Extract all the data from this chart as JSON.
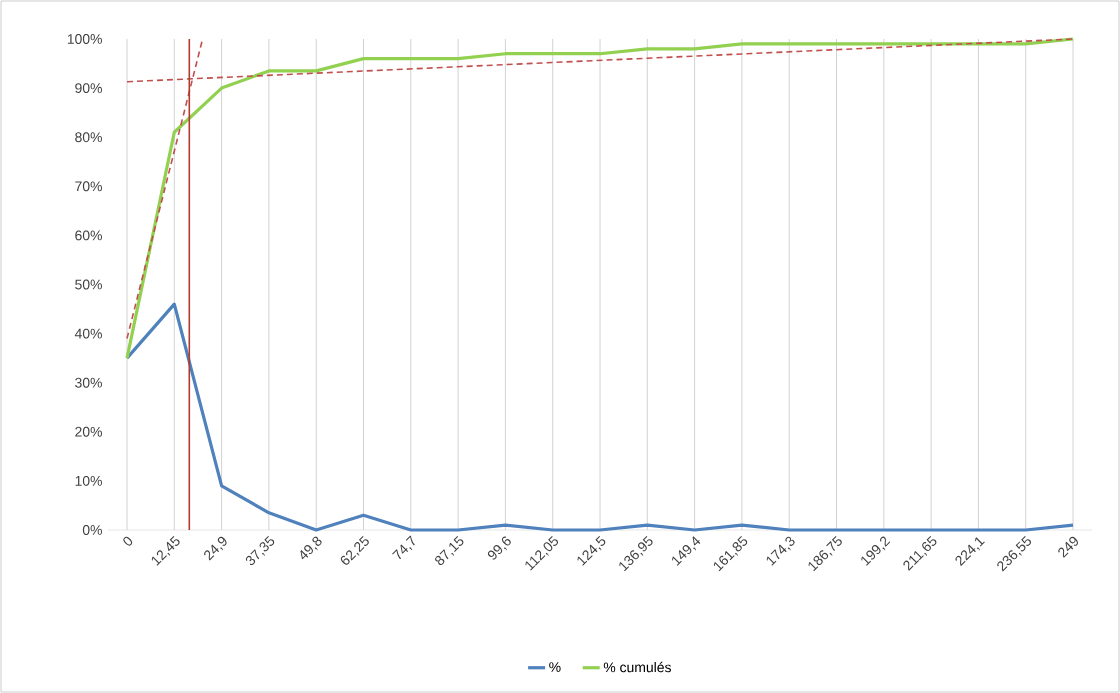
{
  "chart_data": {
    "type": "line",
    "x": [
      0,
      12.45,
      24.9,
      37.35,
      49.8,
      62.25,
      74.7,
      87.15,
      99.6,
      112.05,
      124.5,
      136.95,
      149.4,
      161.85,
      174.3,
      186.75,
      199.2,
      211.65,
      224.1,
      236.55,
      249
    ],
    "series": [
      {
        "name": "%",
        "color": "#4f81bd",
        "values": [
          35,
          46,
          9,
          3.5,
          0,
          3,
          0,
          0,
          1,
          0,
          0,
          1,
          0,
          1,
          0,
          0,
          0,
          0,
          0,
          0,
          1
        ]
      },
      {
        "name": "% cumulés",
        "color": "#92d050",
        "values": [
          35,
          81,
          90,
          93.5,
          93.5,
          96,
          96,
          96,
          97,
          97,
          97,
          98,
          98,
          99,
          99,
          99,
          99,
          99,
          99,
          99,
          100
        ]
      },
      {
        "type": "line",
        "color": "#c0504d",
        "line_style": "dashed",
        "x": [
          0,
          19.9
        ],
        "values": [
          39,
          100
        ]
      },
      {
        "type": "line",
        "color": "#c0504d",
        "line_style": "dashed",
        "x": [
          0,
          249
        ],
        "values": [
          91.3,
          100
        ]
      }
    ],
    "xlim": [
      -5,
      254
    ],
    "xticks": [
      0,
      {
        "value": 12.45,
        "label": "12,45"
      },
      {
        "value": 24.9,
        "label": "24,9"
      },
      {
        "value": 37.35,
        "label": "37,35"
      },
      {
        "value": 49.8,
        "label": "49,8"
      },
      {
        "value": 62.25,
        "label": "62,25"
      },
      {
        "value": 74.7,
        "label": "74,7"
      },
      {
        "value": 87.15,
        "label": "87,15"
      },
      {
        "value": 99.6,
        "label": "99,6"
      },
      {
        "value": 112.05,
        "label": "112,05"
      },
      {
        "value": 124.5,
        "label": "124,5"
      },
      {
        "value": 136.95,
        "label": "136,95"
      },
      {
        "value": 149.4,
        "label": "149,4"
      },
      {
        "value": 161.85,
        "label": "161,85"
      },
      {
        "value": 174.3,
        "label": "174,3"
      },
      {
        "value": 186.75,
        "label": "186,75"
      },
      {
        "value": 199.2,
        "label": "199,2"
      },
      {
        "value": 211.65,
        "label": "211,65"
      },
      {
        "value": 224.1,
        "label": "224,1"
      },
      {
        "value": 236.55,
        "label": "236,55"
      },
      249
    ],
    "ylim": [
      0,
      100
    ],
    "yticks": [
      {
        "value": 0,
        "label": "0%"
      },
      {
        "value": 10,
        "label": "10%"
      },
      {
        "value": 20,
        "label": "20%"
      },
      {
        "value": 30,
        "label": "30%"
      },
      {
        "value": 40,
        "label": "40%"
      },
      {
        "value": 50,
        "label": "50%"
      },
      {
        "value": 60,
        "label": "60%"
      },
      {
        "value": 70,
        "label": "70%"
      },
      {
        "value": 80,
        "label": "80%"
      },
      {
        "value": 90,
        "label": "90%"
      },
      {
        "value": 100,
        "label": "100%"
      }
    ],
    "ref_lines": [
      {
        "axis": "x",
        "value": 16.4,
        "color": "#b03a2e"
      }
    ],
    "grid": "x",
    "legend": "bottom",
    "marker": "none"
  }
}
